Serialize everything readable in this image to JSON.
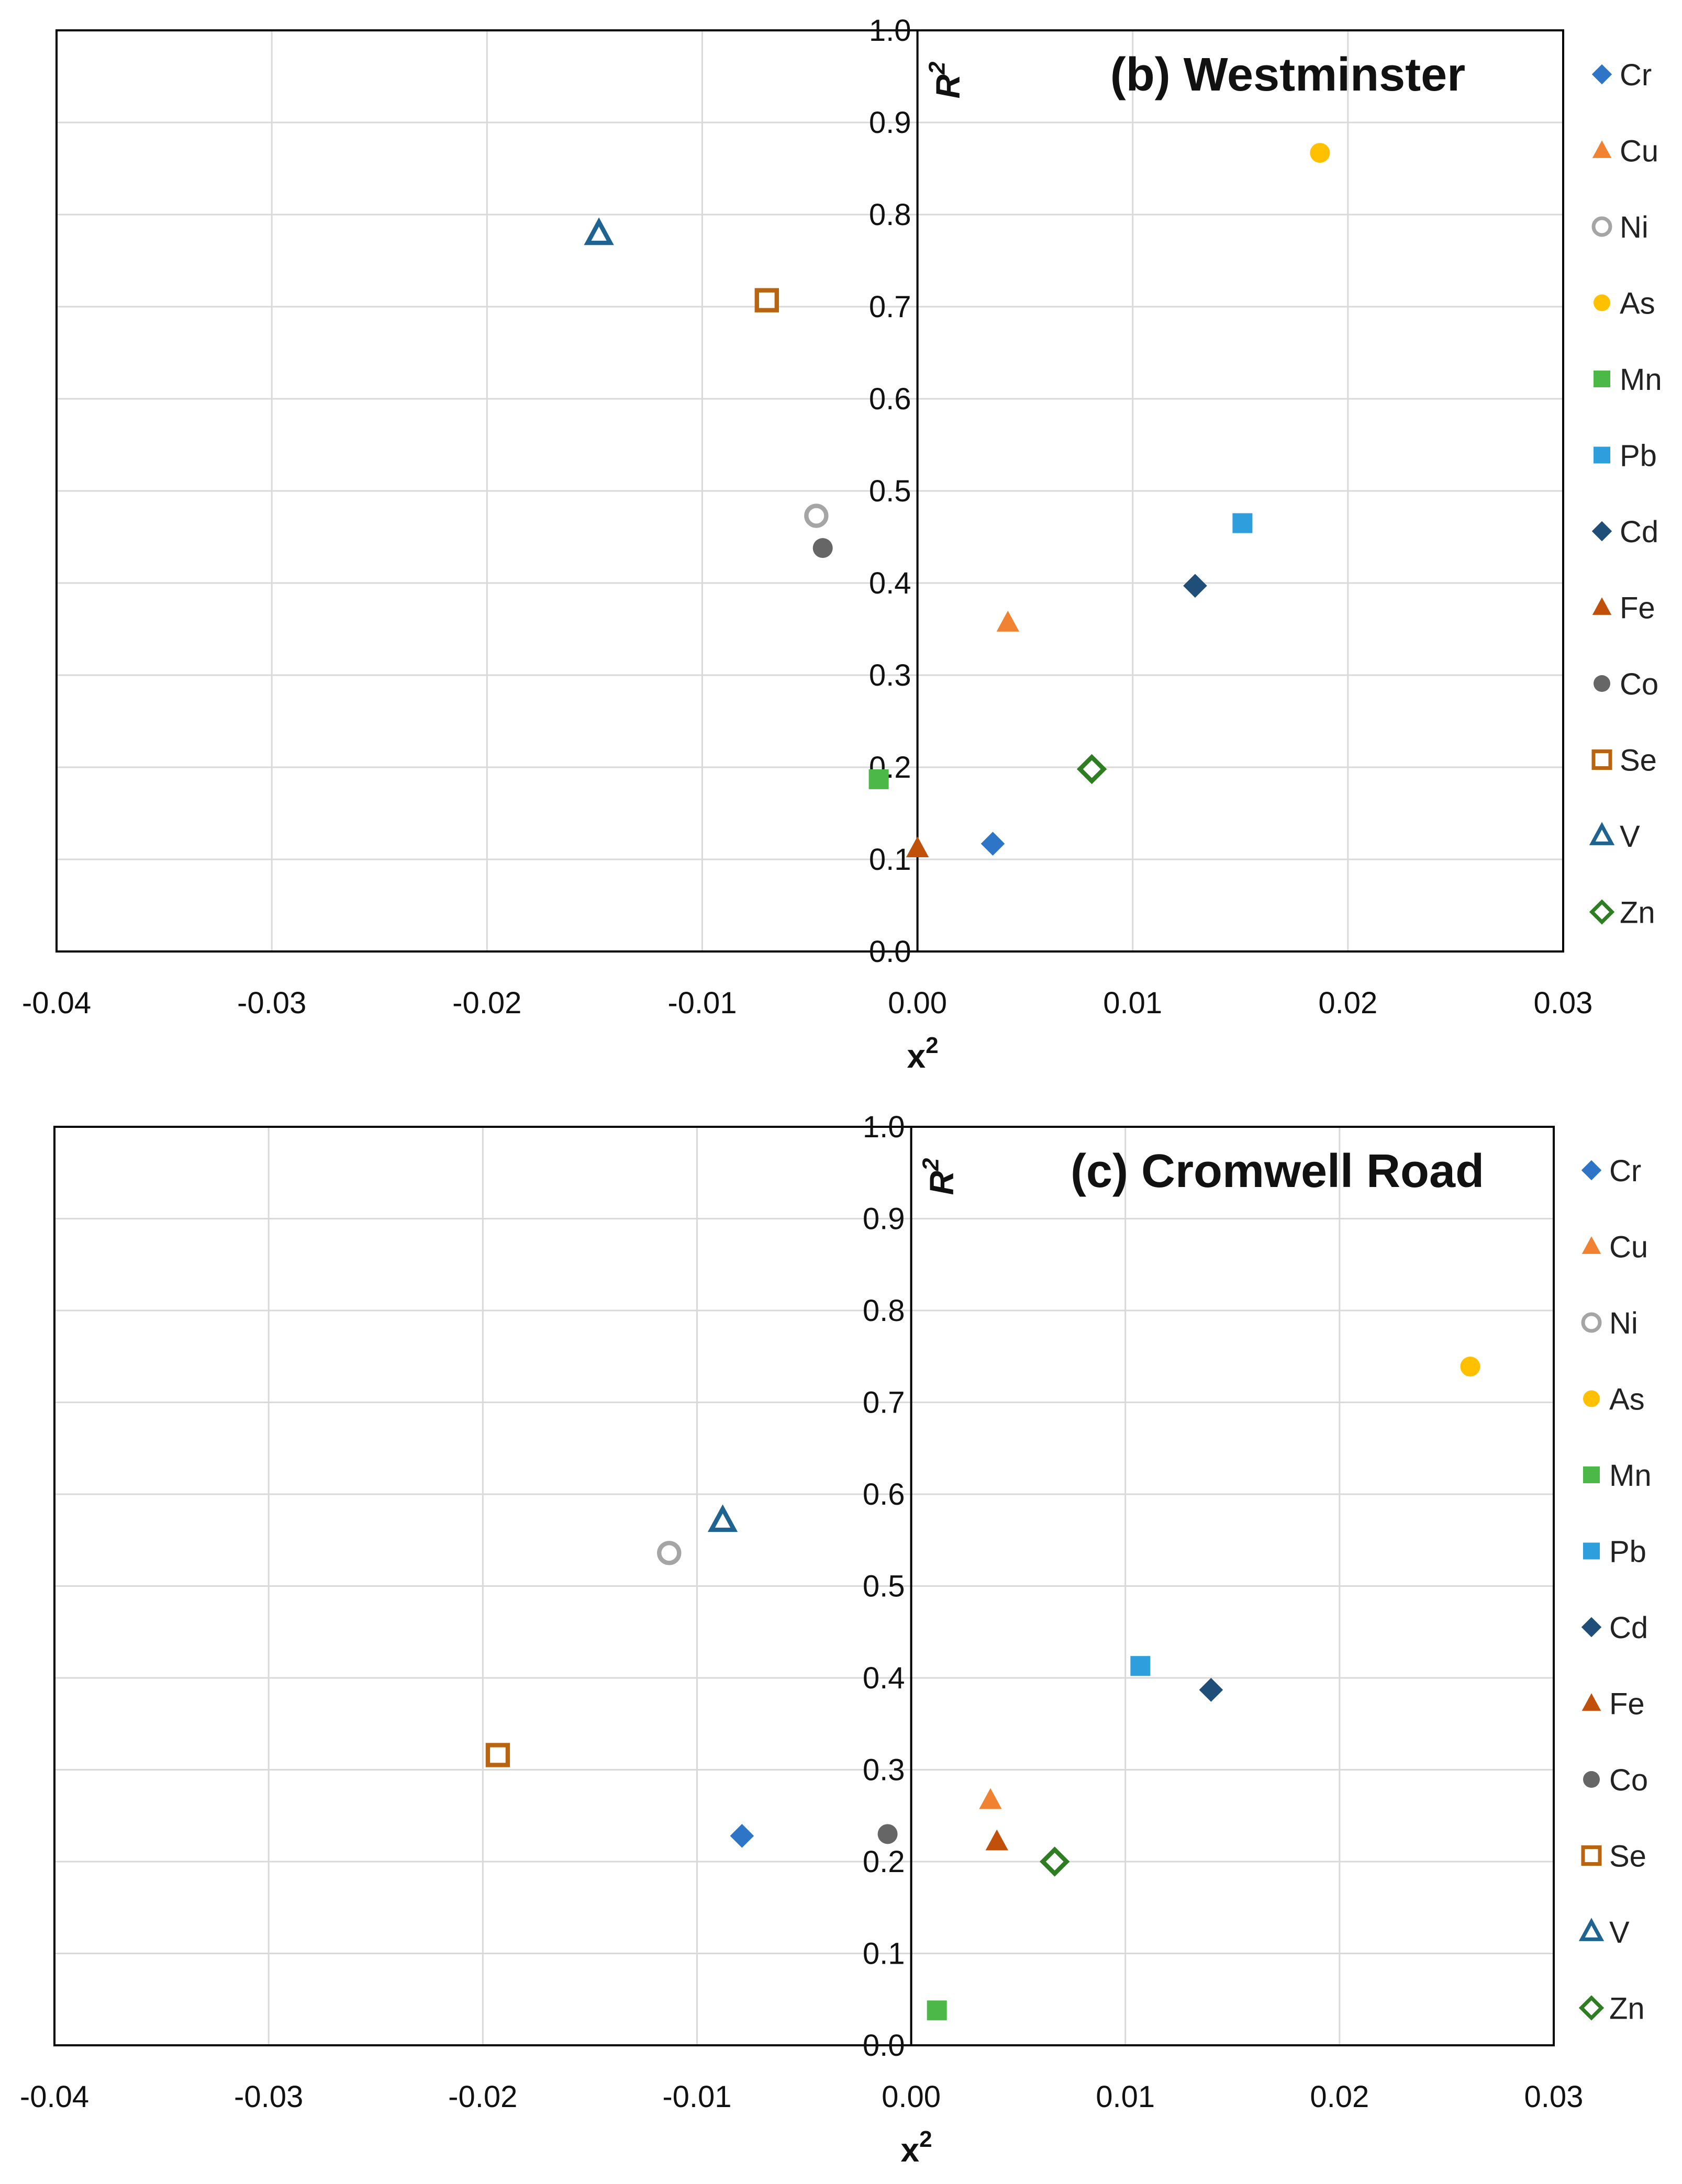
{
  "chart_data": [
    {
      "type": "scatter",
      "title": "(b) Westminster",
      "xlabel": "x",
      "xlabel_sup": "2",
      "ylabel": "R",
      "ylabel_sup": "2",
      "xlim": [
        -0.04,
        0.03
      ],
      "ylim": [
        0.0,
        1.0
      ],
      "x_ticks": [
        -0.04,
        -0.03,
        -0.02,
        -0.01,
        0.0,
        0.01,
        0.02,
        0.03
      ],
      "x_tick_labels": [
        "-0.04",
        "-0.03",
        "-0.02",
        "-0.01",
        "0.00",
        "0.01",
        "0.02",
        "0.03"
      ],
      "y_ticks": [
        0.0,
        0.1,
        0.2,
        0.3,
        0.4,
        0.5,
        0.6,
        0.7,
        0.8,
        0.9,
        1.0
      ],
      "y_tick_labels": [
        "0.0",
        "0.1",
        "0.2",
        "0.3",
        "0.4",
        "0.5",
        "0.6",
        "0.7",
        "0.8",
        "0.9",
        "1.0"
      ],
      "grid": true,
      "legend_position": "right",
      "series": [
        {
          "name": "Cr",
          "marker": "diamond",
          "color": "#2E75C8",
          "filled": true,
          "x": 0.0035,
          "y": 0.117
        },
        {
          "name": "Cu",
          "marker": "triangle",
          "color": "#F08232",
          "filled": true,
          "x": 0.0042,
          "y": 0.357
        },
        {
          "name": "Ni",
          "marker": "circle",
          "color": "#A5A5A5",
          "filled": false,
          "x": -0.0047,
          "y": 0.473
        },
        {
          "name": "As",
          "marker": "circle",
          "color": "#FFC000",
          "filled": true,
          "x": 0.0187,
          "y": 0.867
        },
        {
          "name": "Mn",
          "marker": "square",
          "color": "#4CB848",
          "filled": true,
          "x": -0.0018,
          "y": 0.187
        },
        {
          "name": "Pb",
          "marker": "square",
          "color": "#2E9FDC",
          "filled": true,
          "x": 0.0151,
          "y": 0.465
        },
        {
          "name": "Cd",
          "marker": "diamond",
          "color": "#1F4E79",
          "filled": true,
          "x": 0.0129,
          "y": 0.397
        },
        {
          "name": "Fe",
          "marker": "triangle",
          "color": "#C0500A",
          "filled": true,
          "x": 0.0,
          "y": 0.112
        },
        {
          "name": "Co",
          "marker": "circle",
          "color": "#666666",
          "filled": true,
          "x": -0.0044,
          "y": 0.438
        },
        {
          "name": "Se",
          "marker": "square",
          "color": "#B86410",
          "filled": false,
          "x": -0.007,
          "y": 0.707
        },
        {
          "name": "V",
          "marker": "triangle",
          "color": "#1F6391",
          "filled": false,
          "x": -0.0148,
          "y": 0.779
        },
        {
          "name": "Zn",
          "marker": "diamond",
          "color": "#2E7D22",
          "filled": false,
          "x": 0.0081,
          "y": 0.198
        }
      ]
    },
    {
      "type": "scatter",
      "title": "(c) Cromwell Road",
      "xlabel": "x",
      "xlabel_sup": "2",
      "ylabel": "R",
      "ylabel_sup": "2",
      "xlim": [
        -0.04,
        0.03
      ],
      "ylim": [
        0.0,
        1.0
      ],
      "x_ticks": [
        -0.04,
        -0.03,
        -0.02,
        -0.01,
        0.0,
        0.01,
        0.02,
        0.03
      ],
      "x_tick_labels": [
        "-0.04",
        "-0.03",
        "-0.02",
        "-0.01",
        "0.00",
        "0.01",
        "0.02",
        "0.03"
      ],
      "y_ticks": [
        0.0,
        0.1,
        0.2,
        0.3,
        0.4,
        0.5,
        0.6,
        0.7,
        0.8,
        0.9,
        1.0
      ],
      "y_tick_labels": [
        "0.0",
        "0.1",
        "0.2",
        "0.3",
        "0.4",
        "0.5",
        "0.6",
        "0.7",
        "0.8",
        "0.9",
        "1.0"
      ],
      "grid": true,
      "legend_position": "right",
      "series": [
        {
          "name": "Cr",
          "marker": "diamond",
          "color": "#2E75C8",
          "filled": true,
          "x": -0.0079,
          "y": 0.228
        },
        {
          "name": "Cu",
          "marker": "triangle",
          "color": "#F08232",
          "filled": true,
          "x": 0.0037,
          "y": 0.267
        },
        {
          "name": "Ni",
          "marker": "circle",
          "color": "#A5A5A5",
          "filled": false,
          "x": -0.0113,
          "y": 0.536
        },
        {
          "name": "As",
          "marker": "circle",
          "color": "#FFC000",
          "filled": true,
          "x": 0.0261,
          "y": 0.739
        },
        {
          "name": "Mn",
          "marker": "square",
          "color": "#4CB848",
          "filled": true,
          "x": 0.0012,
          "y": 0.038
        },
        {
          "name": "Pb",
          "marker": "square",
          "color": "#2E9FDC",
          "filled": true,
          "x": 0.0107,
          "y": 0.413
        },
        {
          "name": "Cd",
          "marker": "diamond",
          "color": "#1F4E79",
          "filled": true,
          "x": 0.014,
          "y": 0.387
        },
        {
          "name": "Fe",
          "marker": "triangle",
          "color": "#C0500A",
          "filled": true,
          "x": 0.004,
          "y": 0.222
        },
        {
          "name": "Co",
          "marker": "circle",
          "color": "#666666",
          "filled": true,
          "x": -0.0011,
          "y": 0.23
        },
        {
          "name": "Se",
          "marker": "square",
          "color": "#B86410",
          "filled": false,
          "x": -0.0193,
          "y": 0.316
        },
        {
          "name": "V",
          "marker": "triangle",
          "color": "#1F6391",
          "filled": false,
          "x": -0.0088,
          "y": 0.571
        },
        {
          "name": "Zn",
          "marker": "diamond",
          "color": "#2E7D22",
          "filled": false,
          "x": 0.0067,
          "y": 0.2
        }
      ]
    }
  ]
}
